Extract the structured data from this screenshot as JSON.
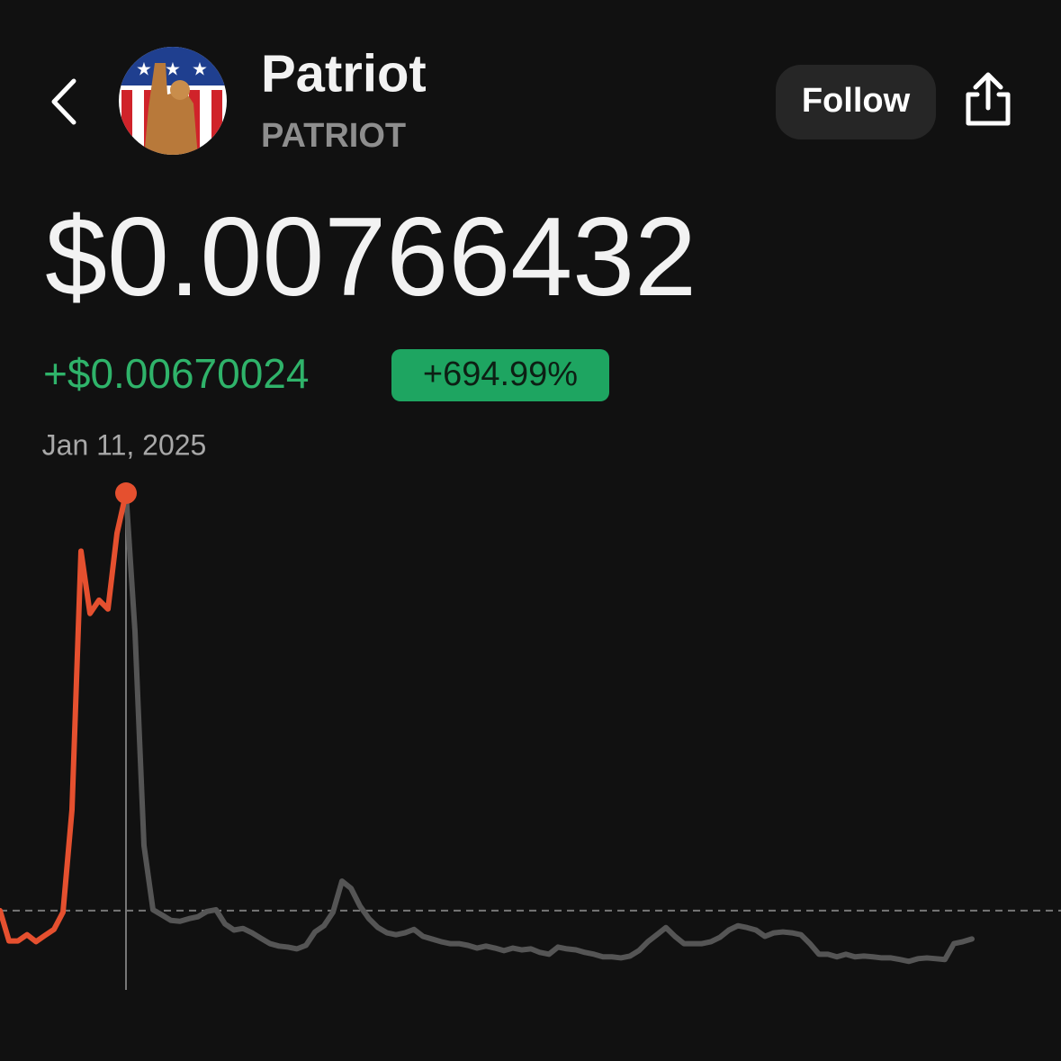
{
  "header": {
    "name": "Patriot",
    "ticker": "PATRIOT",
    "follow": "Follow",
    "price": "$0.00766432",
    "change": "+$0.00670024",
    "change_percent": "+694.99%"
  },
  "chart_data": {
    "type": "line",
    "annotation": "Jan 11, 2025",
    "log_scale": true,
    "ylim": [
      0.00065,
      0.0095
    ],
    "baseline": 0.00096408,
    "series": [
      {
        "color": "#e5502f",
        "values": [
          0.000964,
          0.000829,
          0.000829,
          0.000855,
          0.000826,
          0.000852,
          0.000878,
          0.000956,
          0.001591,
          0.005749,
          0.004216,
          0.004505,
          0.00431,
          0.006281,
          0.00766432,
          null,
          null,
          null,
          null,
          null,
          null,
          null,
          null,
          null,
          null,
          null,
          null,
          null,
          null,
          null,
          null,
          null,
          null,
          null,
          null,
          null,
          null,
          null,
          null,
          null,
          null,
          null,
          null,
          null,
          null,
          null,
          null,
          null,
          null,
          null,
          null,
          null,
          null,
          null,
          null,
          null,
          null,
          null,
          null,
          null,
          null,
          null,
          null,
          null,
          null,
          null,
          null,
          null,
          null,
          null,
          null,
          null,
          null,
          null,
          null,
          null,
          null,
          null,
          null,
          null,
          null,
          null,
          null,
          null,
          null,
          null,
          null,
          null,
          null,
          null,
          null,
          null,
          null,
          null,
          null,
          null,
          null,
          null,
          null,
          null,
          null,
          null,
          null,
          null,
          null,
          null,
          null,
          null,
          null
        ]
      },
      {
        "color": "#555555",
        "values": [
          null,
          null,
          null,
          null,
          null,
          null,
          null,
          null,
          null,
          null,
          null,
          null,
          null,
          null,
          0.00766432,
          0.003858,
          0.001332,
          0.000968,
          0.000943,
          0.000918,
          0.000914,
          0.000926,
          0.000935,
          0.00096,
          0.000968,
          0.000902,
          0.000875,
          0.000882,
          0.000863,
          0.00084,
          0.000818,
          0.000808,
          0.000804,
          0.000797,
          0.000811,
          0.000867,
          0.000894,
          0.000956,
          0.001116,
          0.001077,
          0.000986,
          0.000926,
          0.000886,
          0.000863,
          0.000855,
          0.000863,
          0.000878,
          0.000848,
          0.000837,
          0.000826,
          0.000818,
          0.000818,
          0.000811,
          0.0008,
          0.000808,
          0.0008,
          0.00079,
          0.0008,
          0.000793,
          0.000797,
          0.000783,
          0.000776,
          0.000804,
          0.000797,
          0.000793,
          0.000783,
          0.000776,
          0.000766,
          0.000766,
          0.000762,
          0.000769,
          0.00079,
          0.000826,
          0.000855,
          0.000886,
          0.000848,
          0.000818,
          0.000818,
          0.000818,
          0.000826,
          0.000844,
          0.000875,
          0.000894,
          0.000886,
          0.000875,
          0.000848,
          0.000863,
          0.000867,
          0.000863,
          0.000855,
          0.000818,
          0.000776,
          0.000776,
          0.000766,
          0.000776,
          0.000766,
          0.000769,
          0.000766,
          0.000762,
          0.000762,
          0.000756,
          0.000749,
          0.000759,
          0.000762,
          0.000759,
          0.000756,
          0.000818,
          0.000826,
          0.000837
        ]
      }
    ]
  }
}
